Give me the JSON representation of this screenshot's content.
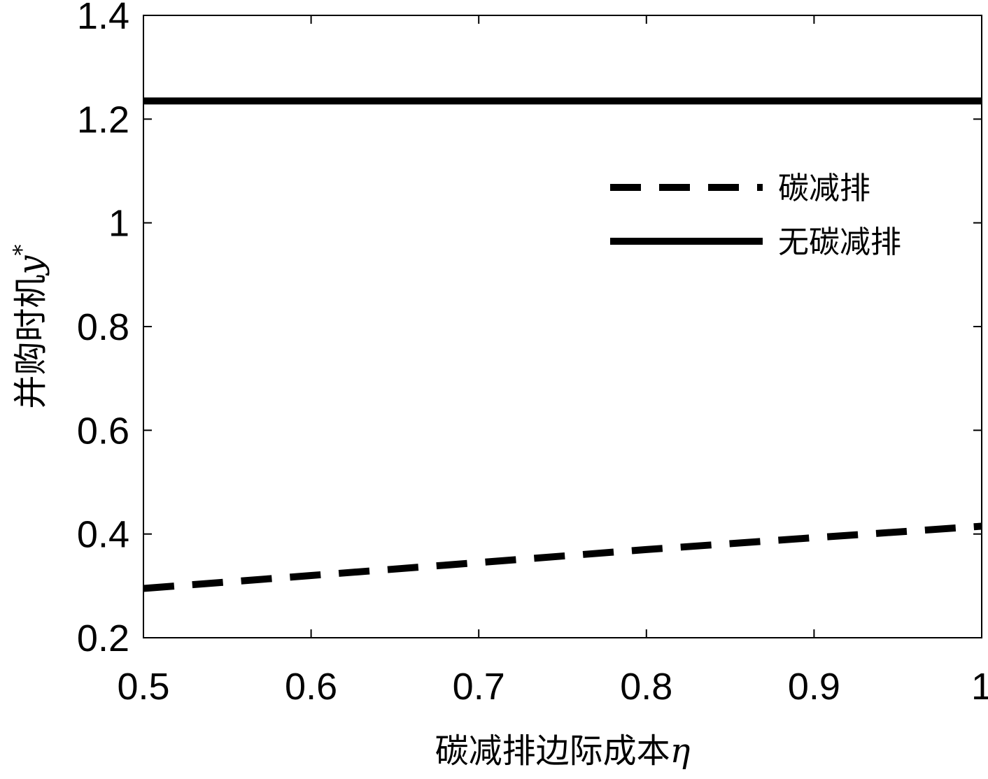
{
  "chart_data": {
    "type": "line",
    "xlabel": "碳减排边际成本",
    "xlabel_symbol": "η",
    "ylabel": "并购时机",
    "ylabel_symbol": "y",
    "ylabel_superscript": "*",
    "xlim": [
      0.5,
      1.0
    ],
    "ylim": [
      0.2,
      1.4
    ],
    "xticks": [
      "0.5",
      "0.6",
      "0.7",
      "0.8",
      "0.9",
      "1"
    ],
    "xtick_values": [
      0.5,
      0.6,
      0.7,
      0.8,
      0.9,
      1.0
    ],
    "yticks": [
      "0.2",
      "0.4",
      "0.6",
      "0.8",
      "1",
      "1.2",
      "1.4"
    ],
    "ytick_values": [
      0.2,
      0.4,
      0.6,
      0.8,
      1.0,
      1.2,
      1.4
    ],
    "grid": false,
    "legend_position": "upper-right",
    "series": [
      {
        "name": "碳减排",
        "style": "dashed",
        "color": "#000000",
        "x": [
          0.5,
          0.6,
          0.7,
          0.8,
          0.9,
          1.0
        ],
        "y": [
          0.295,
          0.32,
          0.345,
          0.37,
          0.393,
          0.415
        ]
      },
      {
        "name": "无碳减排",
        "style": "solid",
        "color": "#000000",
        "x": [
          0.5,
          1.0
        ],
        "y": [
          1.235,
          1.235
        ]
      }
    ]
  }
}
